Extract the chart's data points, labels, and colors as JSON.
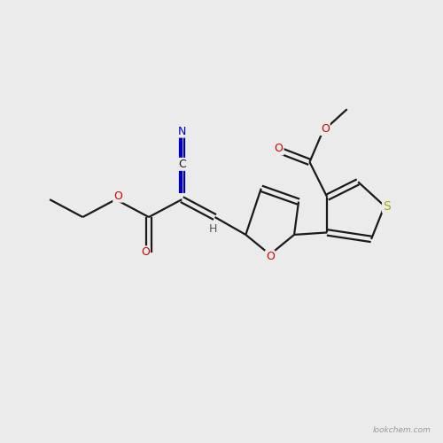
{
  "background_color": "#ebebeb",
  "bond_color": "#1a1a1a",
  "atom_colors": {
    "O": "#cc0000",
    "N": "#0000bb",
    "S": "#aaaa00",
    "C": "#1a1a1a",
    "H": "#555555"
  },
  "figsize": [
    5.0,
    5.0
  ],
  "dpi": 100,
  "watermark": "lookchem.com",
  "xlim": [
    0,
    10
  ],
  "ylim": [
    0,
    10
  ]
}
